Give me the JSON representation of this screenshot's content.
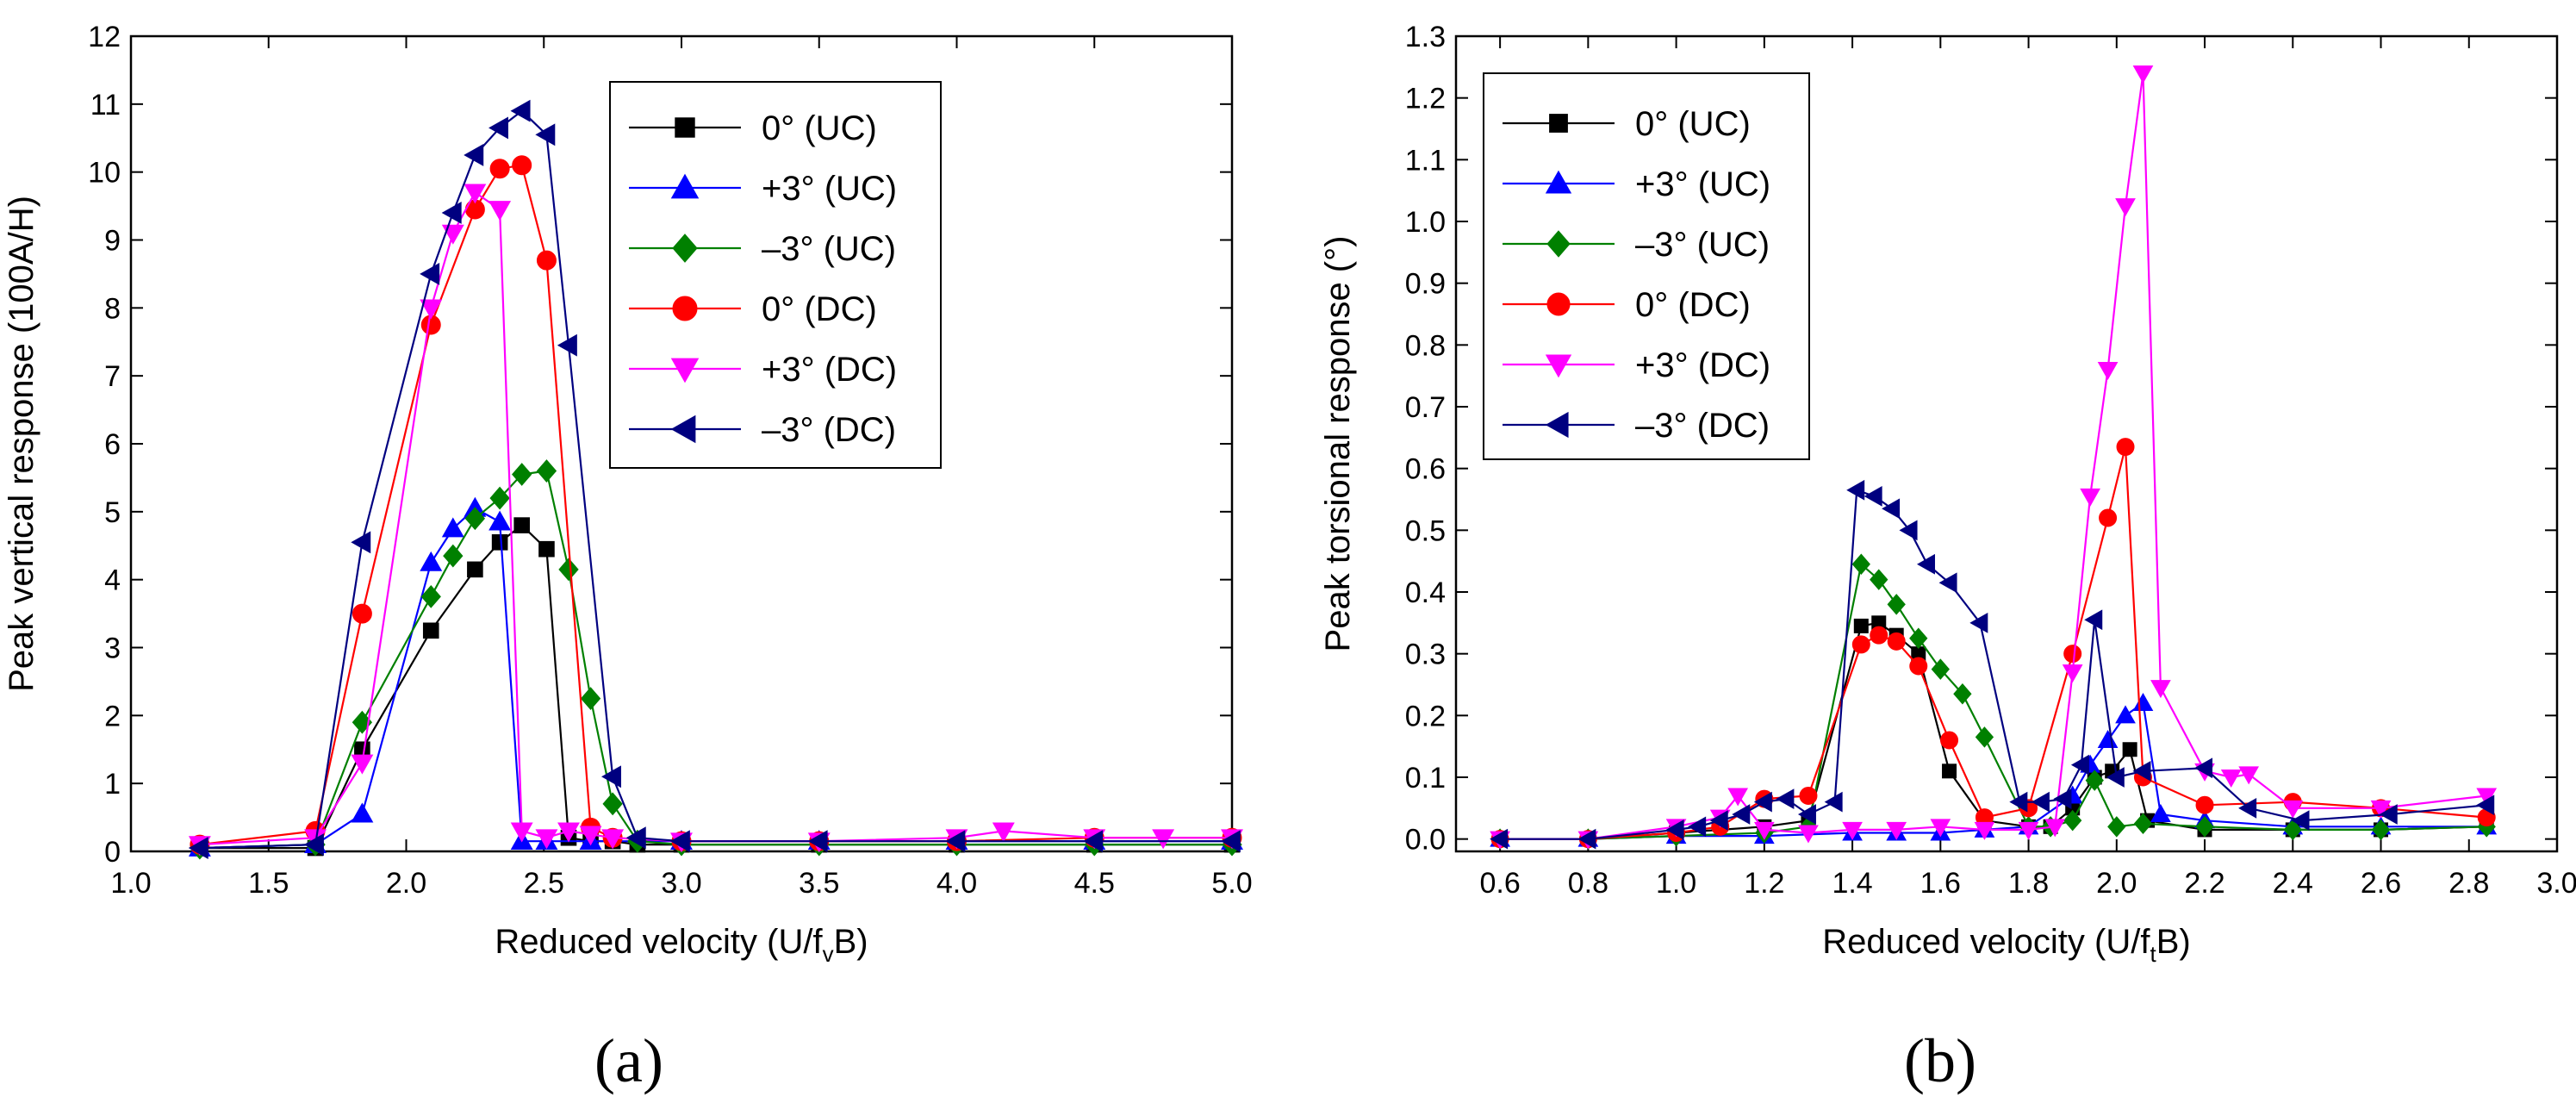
{
  "chart_data": [
    {
      "type": "line",
      "panel_label": "(a)",
      "xlabel": "Reduced velocity (U/f",
      "xlabel_sub": "v",
      "xlabel_tail": "B)",
      "ylabel": "Peak vertical response (100A/H)",
      "xlim": [
        1.0,
        5.0
      ],
      "ylim": [
        0,
        12
      ],
      "xticks": [
        "1.0",
        "1.5",
        "2.0",
        "2.5",
        "3.0",
        "3.5",
        "4.0",
        "4.5",
        "5.0"
      ],
      "yticks": [
        "0",
        "1",
        "2",
        "3",
        "4",
        "5",
        "6",
        "7",
        "8",
        "9",
        "10",
        "11",
        "12"
      ],
      "legend_position": "top-right",
      "series": [
        {
          "name": "0° (UC)",
          "color": "#000000",
          "marker": "square",
          "x": [
            1.25,
            1.67,
            1.84,
            2.09,
            2.25,
            2.34,
            2.42,
            2.51,
            2.59,
            2.67,
            2.75,
            2.84,
            3.0,
            3.5,
            4.0,
            4.5,
            5.0
          ],
          "y": [
            0.05,
            0.05,
            1.5,
            3.25,
            4.15,
            4.55,
            4.8,
            4.45,
            0.2,
            0.15,
            0.15,
            0.1,
            0.1,
            0.1,
            0.1,
            0.1,
            0.1
          ]
        },
        {
          "name": "+3° (UC)",
          "color": "#0000ff",
          "marker": "triangle-up",
          "x": [
            1.25,
            1.67,
            1.84,
            2.09,
            2.17,
            2.25,
            2.34,
            2.42,
            2.51,
            2.67,
            3.0,
            3.5,
            4.0,
            4.5,
            5.0
          ],
          "y": [
            0.05,
            0.1,
            0.55,
            4.25,
            4.75,
            5.05,
            4.85,
            0.15,
            0.15,
            0.15,
            0.15,
            0.15,
            0.15,
            0.15,
            0.15
          ]
        },
        {
          "name": "–3° (UC)",
          "color": "#008000",
          "marker": "diamond",
          "x": [
            1.25,
            1.67,
            1.84,
            2.09,
            2.17,
            2.25,
            2.34,
            2.42,
            2.51,
            2.59,
            2.67,
            2.75,
            2.84,
            3.0,
            3.5,
            4.0,
            4.5,
            5.0
          ],
          "y": [
            0.05,
            0.1,
            1.9,
            3.75,
            4.35,
            4.9,
            5.2,
            5.55,
            5.6,
            4.15,
            2.25,
            0.7,
            0.15,
            0.1,
            0.1,
            0.1,
            0.1,
            0.1
          ]
        },
        {
          "name": "0° (DC)",
          "color": "#ff0000",
          "marker": "circle",
          "x": [
            1.25,
            1.67,
            1.84,
            2.09,
            2.25,
            2.34,
            2.42,
            2.51,
            2.67,
            2.75,
            3.0,
            3.5,
            4.0,
            4.5,
            5.0
          ],
          "y": [
            0.1,
            0.3,
            3.5,
            7.75,
            9.45,
            10.05,
            10.1,
            8.7,
            0.35,
            0.2,
            0.15,
            0.15,
            0.15,
            0.2,
            0.2
          ]
        },
        {
          "name": "+3° (DC)",
          "color": "#ff00ff",
          "marker": "triangle-down",
          "x": [
            1.25,
            1.67,
            1.84,
            2.09,
            2.17,
            2.25,
            2.34,
            2.42,
            2.51,
            2.59,
            2.67,
            2.75,
            3.0,
            3.5,
            4.0,
            4.17,
            4.5,
            4.75,
            5.0
          ],
          "y": [
            0.1,
            0.2,
            1.3,
            8.0,
            9.1,
            9.7,
            9.45,
            0.3,
            0.2,
            0.3,
            0.25,
            0.2,
            0.15,
            0.15,
            0.2,
            0.3,
            0.2,
            0.2,
            0.2
          ]
        },
        {
          "name": "–3° (DC)",
          "color": "#000080",
          "marker": "triangle-left",
          "x": [
            1.25,
            1.67,
            1.84,
            2.09,
            2.17,
            2.25,
            2.34,
            2.42,
            2.51,
            2.59,
            2.75,
            2.84,
            3.0,
            3.5,
            4.0,
            4.5,
            5.0
          ],
          "y": [
            0.05,
            0.1,
            4.55,
            8.5,
            9.4,
            10.25,
            10.65,
            10.9,
            10.55,
            7.45,
            1.1,
            0.2,
            0.15,
            0.15,
            0.15,
            0.15,
            0.15
          ]
        }
      ]
    },
    {
      "type": "line",
      "panel_label": "(b)",
      "xlabel": "Reduced velocity (U/f",
      "xlabel_sub": "t",
      "xlabel_tail": "B)",
      "ylabel": "Peak torsional response (°)",
      "xlim": [
        0.5,
        3.0
      ],
      "ylim": [
        -0.02,
        1.3
      ],
      "xticks": [
        "0.6",
        "0.8",
        "1.0",
        "1.2",
        "1.4",
        "1.6",
        "1.8",
        "2.0",
        "2.2",
        "2.4",
        "2.6",
        "2.8",
        "3.0"
      ],
      "yticks": [
        "0.0",
        "0.1",
        "0.2",
        "0.3",
        "0.4",
        "0.5",
        "0.6",
        "0.7",
        "0.8",
        "0.9",
        "1.0",
        "1.1",
        "1.2",
        "1.3"
      ],
      "legend_position": "top-left",
      "series": [
        {
          "name": "0° (UC)",
          "color": "#000000",
          "marker": "square",
          "x": [
            0.6,
            0.8,
            1.0,
            1.2,
            1.3,
            1.42,
            1.46,
            1.5,
            1.55,
            1.62,
            1.7,
            1.8,
            1.85,
            1.9,
            1.95,
            1.99,
            2.03,
            2.07,
            2.2,
            2.4,
            2.6,
            2.84
          ],
          "y": [
            0.0,
            0.0,
            0.01,
            0.02,
            0.03,
            0.345,
            0.35,
            0.33,
            0.3,
            0.11,
            0.03,
            0.02,
            0.02,
            0.05,
            0.1,
            0.11,
            0.145,
            0.03,
            0.015,
            0.015,
            0.015,
            0.02
          ]
        },
        {
          "name": "+3° (UC)",
          "color": "#0000ff",
          "marker": "triangle-up",
          "x": [
            0.6,
            0.8,
            1.0,
            1.2,
            1.4,
            1.5,
            1.6,
            1.7,
            1.8,
            1.9,
            1.94,
            1.98,
            2.02,
            2.06,
            2.1,
            2.2,
            2.4,
            2.6,
            2.84
          ],
          "y": [
            0.0,
            0.0,
            0.005,
            0.005,
            0.01,
            0.01,
            0.01,
            0.015,
            0.02,
            0.07,
            0.12,
            0.16,
            0.2,
            0.22,
            0.04,
            0.03,
            0.02,
            0.02,
            0.02
          ]
        },
        {
          "name": "–3° (UC)",
          "color": "#008000",
          "marker": "diamond",
          "x": [
            0.6,
            0.8,
            1.0,
            1.2,
            1.3,
            1.42,
            1.46,
            1.5,
            1.55,
            1.6,
            1.65,
            1.7,
            1.8,
            1.85,
            1.9,
            1.95,
            2.0,
            2.06,
            2.2,
            2.4,
            2.6,
            2.84
          ],
          "y": [
            0.0,
            0.0,
            0.005,
            0.01,
            0.02,
            0.445,
            0.42,
            0.38,
            0.325,
            0.275,
            0.235,
            0.165,
            0.02,
            0.02,
            0.03,
            0.095,
            0.02,
            0.025,
            0.02,
            0.015,
            0.015,
            0.02
          ]
        },
        {
          "name": "0° (DC)",
          "color": "#ff0000",
          "marker": "circle",
          "x": [
            0.6,
            0.8,
            1.0,
            1.1,
            1.2,
            1.3,
            1.42,
            1.46,
            1.5,
            1.55,
            1.62,
            1.7,
            1.8,
            1.9,
            1.98,
            2.02,
            2.06,
            2.2,
            2.4,
            2.6,
            2.84
          ],
          "y": [
            0.0,
            0.0,
            0.01,
            0.02,
            0.065,
            0.07,
            0.315,
            0.33,
            0.32,
            0.28,
            0.16,
            0.035,
            0.05,
            0.3,
            0.52,
            0.635,
            0.1,
            0.055,
            0.06,
            0.05,
            0.035
          ]
        },
        {
          "name": "+3° (DC)",
          "color": "#ff00ff",
          "marker": "triangle-down",
          "x": [
            0.6,
            0.8,
            1.0,
            1.1,
            1.14,
            1.2,
            1.3,
            1.4,
            1.5,
            1.6,
            1.7,
            1.8,
            1.86,
            1.9,
            1.94,
            1.98,
            2.02,
            2.06,
            2.1,
            2.2,
            2.26,
            2.3,
            2.4,
            2.6,
            2.84
          ],
          "y": [
            0.0,
            0.0,
            0.02,
            0.035,
            0.07,
            0.015,
            0.01,
            0.015,
            0.015,
            0.02,
            0.015,
            0.015,
            0.02,
            0.27,
            0.555,
            0.76,
            1.025,
            1.24,
            0.245,
            0.11,
            0.1,
            0.105,
            0.05,
            0.05,
            0.07
          ]
        },
        {
          "name": "–3° (DC)",
          "color": "#000080",
          "marker": "triangle-left",
          "x": [
            0.6,
            0.8,
            1.0,
            1.05,
            1.1,
            1.15,
            1.2,
            1.25,
            1.3,
            1.36,
            1.41,
            1.45,
            1.49,
            1.53,
            1.57,
            1.62,
            1.69,
            1.78,
            1.83,
            1.88,
            1.92,
            1.95,
            2.0,
            2.06,
            2.2,
            2.3,
            2.42,
            2.62,
            2.84
          ],
          "y": [
            0.0,
            0.0,
            0.015,
            0.02,
            0.03,
            0.04,
            0.06,
            0.065,
            0.04,
            0.06,
            0.565,
            0.555,
            0.535,
            0.5,
            0.445,
            0.415,
            0.35,
            0.06,
            0.06,
            0.065,
            0.12,
            0.355,
            0.1,
            0.11,
            0.115,
            0.05,
            0.03,
            0.04,
            0.055
          ]
        }
      ]
    }
  ]
}
